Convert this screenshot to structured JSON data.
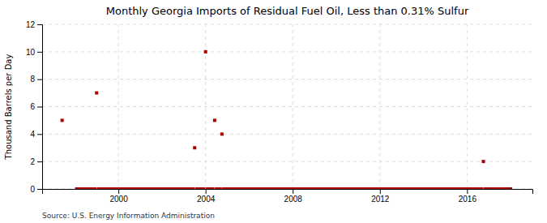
{
  "chart_data": {
    "type": "scatter",
    "title": "Monthly Georgia Imports of Residual Fuel Oil, Less than 0.31% Sulfur",
    "ylabel": "Thousand Barrels per Day",
    "annotations": [
      "Source: U.S. Energy Information Administration"
    ],
    "color": "#aa0000",
    "marker": "square",
    "grid": true,
    "xlim": [
      1996.5,
      2019.0
    ],
    "ylim": [
      0,
      12
    ],
    "xticks": [
      2000,
      2004,
      2008,
      2012,
      2016
    ],
    "yticks": [
      0,
      2,
      4,
      6,
      8,
      10,
      12
    ],
    "x": [
      1997.417,
      1998.083,
      1998.167,
      1998.25,
      1998.333,
      1998.417,
      1998.5,
      1998.583,
      1998.667,
      1998.75,
      1998.833,
      1998.917,
      1999.0,
      1999.083,
      1999.167,
      1999.25,
      1999.333,
      1999.417,
      1999.5,
      1999.583,
      1999.667,
      1999.75,
      1999.833,
      1999.917,
      2000.0,
      2000.083,
      2000.167,
      2000.25,
      2000.333,
      2000.417,
      2000.5,
      2000.583,
      2000.667,
      2000.75,
      2000.833,
      2000.917,
      2001.0,
      2001.083,
      2001.167,
      2001.25,
      2001.333,
      2001.417,
      2001.5,
      2001.583,
      2001.667,
      2001.75,
      2001.833,
      2001.917,
      2002.0,
      2002.083,
      2002.167,
      2002.25,
      2002.333,
      2002.417,
      2002.5,
      2002.583,
      2002.667,
      2002.75,
      2002.833,
      2002.917,
      2003.0,
      2003.083,
      2003.167,
      2003.25,
      2003.333,
      2003.417,
      2003.5,
      2003.583,
      2003.667,
      2003.75,
      2003.833,
      2003.917,
      2004.0,
      2004.083,
      2004.167,
      2004.25,
      2004.333,
      2004.417,
      2004.5,
      2004.583,
      2004.667,
      2004.75,
      2004.833,
      2004.917,
      2005.0,
      2005.083,
      2005.167,
      2005.25,
      2005.333,
      2005.417,
      2005.5,
      2005.583,
      2005.667,
      2005.75,
      2005.833,
      2005.917,
      2006.0,
      2006.083,
      2006.167,
      2006.25,
      2006.333,
      2006.417,
      2006.5,
      2006.583,
      2006.667,
      2006.75,
      2006.833,
      2006.917,
      2007.0,
      2007.083,
      2007.167,
      2007.25,
      2007.333,
      2007.417,
      2007.5,
      2007.583,
      2007.667,
      2007.75,
      2007.833,
      2007.917,
      2008.0,
      2008.083,
      2008.167,
      2008.25,
      2008.333,
      2008.417,
      2008.5,
      2008.583,
      2008.667,
      2008.75,
      2008.833,
      2008.917,
      2009.0,
      2009.083,
      2009.167,
      2009.25,
      2009.333,
      2009.417,
      2009.5,
      2009.583,
      2009.667,
      2009.75,
      2009.833,
      2009.917,
      2010.0,
      2010.083,
      2010.167,
      2010.25,
      2010.333,
      2010.417,
      2010.5,
      2010.583,
      2010.667,
      2010.75,
      2010.833,
      2010.917,
      2011.0,
      2011.083,
      2011.167,
      2011.25,
      2011.333,
      2011.417,
      2011.5,
      2011.583,
      2011.667,
      2011.75,
      2011.833,
      2011.917,
      2012.0,
      2012.083,
      2012.167,
      2012.25,
      2012.333,
      2012.417,
      2012.5,
      2012.583,
      2012.667,
      2012.75,
      2012.833,
      2012.917,
      2013.0,
      2013.083,
      2013.167,
      2013.25,
      2013.333,
      2013.417,
      2013.5,
      2013.583,
      2013.667,
      2013.75,
      2013.833,
      2013.917,
      2014.0,
      2014.083,
      2014.167,
      2014.25,
      2014.333,
      2014.417,
      2014.5,
      2014.583,
      2014.667,
      2014.75,
      2014.833,
      2014.917,
      2015.0,
      2015.083,
      2015.167,
      2015.25,
      2015.333,
      2015.417,
      2015.5,
      2015.583,
      2015.667,
      2015.75,
      2015.833,
      2015.917,
      2016.0,
      2016.083,
      2016.167,
      2016.25,
      2016.333,
      2016.417,
      2016.5,
      2016.583,
      2016.667,
      2016.75,
      2016.833,
      2016.917,
      2017.0,
      2017.083,
      2017.167,
      2017.25,
      2017.333,
      2017.417,
      2017.5,
      2017.583,
      2017.667,
      2017.75,
      2017.833,
      2017.917,
      2018.0
    ],
    "values": [
      5.0,
      0.0,
      0.0,
      0.0,
      0.0,
      0.0,
      0.0,
      0.0,
      0.0,
      0.0,
      0.0,
      0.0,
      7.0,
      0.0,
      0.0,
      0.0,
      0.0,
      0.0,
      0.0,
      0.0,
      0.0,
      0.0,
      0.0,
      0.0,
      0.0,
      0.0,
      0.0,
      0.0,
      0.0,
      0.0,
      0.0,
      0.0,
      0.0,
      0.0,
      0.0,
      0.0,
      0.0,
      0.0,
      0.0,
      0.0,
      0.0,
      0.0,
      0.0,
      0.0,
      0.0,
      0.0,
      0.0,
      0.0,
      0.0,
      0.0,
      0.0,
      0.0,
      0.0,
      0.0,
      0.0,
      0.0,
      0.0,
      0.0,
      0.0,
      0.0,
      0.0,
      0.0,
      0.0,
      0.0,
      0.0,
      0.0,
      3.0,
      0.0,
      0.0,
      0.0,
      0.0,
      0.0,
      10.0,
      0.0,
      0.0,
      0.0,
      0.0,
      5.0,
      0.0,
      0.0,
      0.0,
      4.0,
      0.0,
      0.0,
      0.0,
      0.0,
      0.0,
      0.0,
      0.0,
      0.0,
      0.0,
      0.0,
      0.0,
      0.0,
      0.0,
      0.0,
      0.0,
      0.0,
      0.0,
      0.0,
      0.0,
      0.0,
      0.0,
      0.0,
      0.0,
      0.0,
      0.0,
      0.0,
      0.0,
      0.0,
      0.0,
      0.0,
      0.0,
      0.0,
      0.0,
      0.0,
      0.0,
      0.0,
      0.0,
      0.0,
      0.0,
      0.0,
      0.0,
      0.0,
      0.0,
      0.0,
      0.0,
      0.0,
      0.0,
      0.0,
      0.0,
      0.0,
      0.0,
      0.0,
      0.0,
      0.0,
      0.0,
      0.0,
      0.0,
      0.0,
      0.0,
      0.0,
      0.0,
      0.0,
      0.0,
      0.0,
      0.0,
      0.0,
      0.0,
      0.0,
      0.0,
      0.0,
      0.0,
      0.0,
      0.0,
      0.0,
      0.0,
      0.0,
      0.0,
      0.0,
      0.0,
      0.0,
      0.0,
      0.0,
      0.0,
      0.0,
      0.0,
      0.0,
      0.0,
      0.0,
      0.0,
      0.0,
      0.0,
      0.0,
      0.0,
      0.0,
      0.0,
      0.0,
      0.0,
      0.0,
      0.0,
      0.0,
      0.0,
      0.0,
      0.0,
      0.0,
      0.0,
      0.0,
      0.0,
      0.0,
      0.0,
      0.0,
      0.0,
      0.0,
      0.0,
      0.0,
      0.0,
      0.0,
      0.0,
      0.0,
      0.0,
      0.0,
      0.0,
      0.0,
      0.0,
      0.0,
      0.0,
      0.0,
      0.0,
      0.0,
      0.0,
      0.0,
      0.0,
      0.0,
      0.0,
      0.0,
      0.0,
      0.0,
      0.0,
      0.0,
      0.0,
      0.0,
      0.0,
      0.0,
      0.0,
      2.0,
      0.0,
      0.0,
      0.0,
      0.0,
      0.0,
      0.0,
      0.0,
      0.0,
      0.0,
      0.0,
      0.0,
      0.0,
      0.0,
      0.0,
      0.0
    ]
  }
}
